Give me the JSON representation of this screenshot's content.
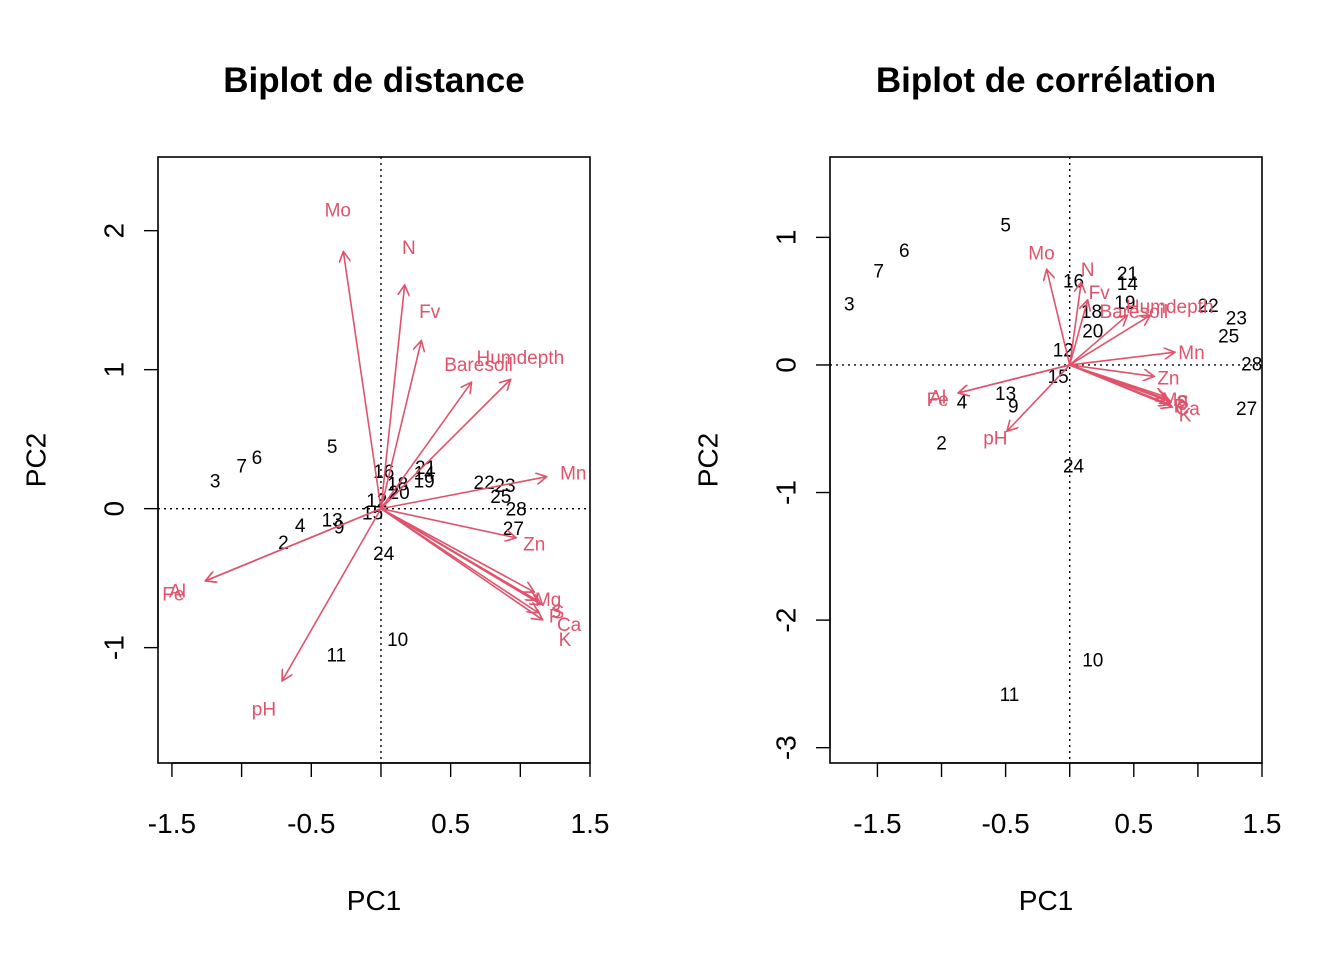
{
  "colors": {
    "arrow": "#DF536B",
    "text": "#000000"
  },
  "chart_data": [
    {
      "type": "scatter",
      "title": "Biplot de distance",
      "xlabel": "PC1",
      "ylabel": "PC2",
      "xlim": [
        -1.6,
        1.5
      ],
      "ylim": [
        -1.83,
        2.53
      ],
      "xticks": [
        -1.5,
        -1.0,
        -0.5,
        0.0,
        0.5,
        1.0,
        1.5
      ],
      "xtick_labels": [
        "-1.5",
        "",
        "-0.5",
        "",
        "0.5",
        "",
        "1.5"
      ],
      "yticks": [
        -1,
        0,
        1,
        2
      ],
      "ytick_labels": [
        "-1",
        "0",
        "1",
        "2"
      ],
      "reference_lines": {
        "x": 0,
        "y": 0,
        "style": "dotted"
      },
      "points": [
        {
          "label": "2",
          "x": -0.7,
          "y": -0.25
        },
        {
          "label": "3",
          "x": -1.19,
          "y": 0.19
        },
        {
          "label": "4",
          "x": -0.58,
          "y": -0.13
        },
        {
          "label": "5",
          "x": -0.35,
          "y": 0.44
        },
        {
          "label": "6",
          "x": -0.89,
          "y": 0.36
        },
        {
          "label": "7",
          "x": -1.0,
          "y": 0.3
        },
        {
          "label": "9",
          "x": -0.3,
          "y": -0.14
        },
        {
          "label": "10",
          "x": 0.12,
          "y": -0.95
        },
        {
          "label": "11",
          "x": -0.32,
          "y": -1.06
        },
        {
          "label": "12",
          "x": -0.03,
          "y": 0.05
        },
        {
          "label": "13",
          "x": -0.35,
          "y": -0.09
        },
        {
          "label": "15",
          "x": -0.06,
          "y": -0.04
        },
        {
          "label": "16",
          "x": 0.02,
          "y": 0.26
        },
        {
          "label": "18",
          "x": 0.12,
          "y": 0.17
        },
        {
          "label": "19",
          "x": 0.31,
          "y": 0.19
        },
        {
          "label": "20",
          "x": 0.13,
          "y": 0.11
        },
        {
          "label": "21",
          "x": 0.32,
          "y": 0.29
        },
        {
          "label": "14",
          "x": 0.31,
          "y": 0.25
        },
        {
          "label": "22",
          "x": 0.74,
          "y": 0.18
        },
        {
          "label": "23",
          "x": 0.89,
          "y": 0.16
        },
        {
          "label": "25",
          "x": 0.86,
          "y": 0.08
        },
        {
          "label": "28",
          "x": 0.97,
          "y": -0.01
        },
        {
          "label": "27",
          "x": 0.95,
          "y": -0.15
        },
        {
          "label": "24",
          "x": 0.02,
          "y": -0.33
        }
      ],
      "arrows": [
        {
          "label": "Mo",
          "x": -0.27,
          "y": 1.85,
          "label_x": -0.31,
          "label_y": 2.14
        },
        {
          "label": "N",
          "x": 0.17,
          "y": 1.61,
          "label_x": 0.2,
          "label_y": 1.87
        },
        {
          "label": "Fv",
          "x": 0.29,
          "y": 1.21,
          "label_x": 0.35,
          "label_y": 1.41
        },
        {
          "label": "Baresoil",
          "x": 0.65,
          "y": 0.91,
          "label_x": 0.7,
          "label_y": 1.03
        },
        {
          "label": "Humdepth",
          "x": 0.93,
          "y": 0.93,
          "label_x": 1.0,
          "label_y": 1.08
        },
        {
          "label": "Mn",
          "x": 1.19,
          "y": 0.23,
          "label_x": 1.38,
          "label_y": 0.25
        },
        {
          "label": "Zn",
          "x": 0.97,
          "y": -0.21,
          "label_x": 1.1,
          "label_y": -0.26
        },
        {
          "label": "Mg",
          "x": 1.12,
          "y": -0.66,
          "label_x": 1.2,
          "label_y": -0.66
        },
        {
          "label": "P",
          "x": 1.15,
          "y": -0.69,
          "label_x": 1.25,
          "label_y": -0.78
        },
        {
          "label": "S",
          "x": 1.1,
          "y": -0.6,
          "label_x": 1.27,
          "label_y": -0.75
        },
        {
          "label": "Ca",
          "x": 1.16,
          "y": -0.8,
          "label_x": 1.35,
          "label_y": -0.84
        },
        {
          "label": "K",
          "x": 1.13,
          "y": -0.75,
          "label_x": 1.32,
          "label_y": -0.95
        },
        {
          "label": "Al",
          "x": -1.26,
          "y": -0.52,
          "label_x": -1.46,
          "label_y": -0.6
        },
        {
          "label": "Fe",
          "x": -1.26,
          "y": -0.52,
          "label_x": -1.49,
          "label_y": -0.62
        },
        {
          "label": "pH",
          "x": -0.71,
          "y": -1.24,
          "label_x": -0.84,
          "label_y": -1.45
        }
      ]
    },
    {
      "type": "scatter",
      "title": "Biplot de corrélation",
      "xlabel": "PC1",
      "ylabel": "PC2",
      "xlim": [
        -1.87,
        1.5
      ],
      "ylim": [
        -3.12,
        1.63
      ],
      "xticks": [
        -1.5,
        -1.0,
        -0.5,
        0.0,
        0.5,
        1.0,
        1.5
      ],
      "xtick_labels": [
        "-1.5",
        "",
        "-0.5",
        "",
        "0.5",
        "",
        "1.5"
      ],
      "yticks": [
        -3,
        -2,
        -1,
        0,
        1
      ],
      "ytick_labels": [
        "-3",
        "-2",
        "-1",
        "0",
        "1"
      ],
      "reference_lines": {
        "x": 0,
        "y": 0,
        "style": "dotted"
      },
      "points": [
        {
          "label": "2",
          "x": -1.0,
          "y": -0.62
        },
        {
          "label": "3",
          "x": -1.72,
          "y": 0.47
        },
        {
          "label": "4",
          "x": -0.84,
          "y": -0.3
        },
        {
          "label": "5",
          "x": -0.5,
          "y": 1.09
        },
        {
          "label": "6",
          "x": -1.29,
          "y": 0.89
        },
        {
          "label": "7",
          "x": -1.49,
          "y": 0.73
        },
        {
          "label": "9",
          "x": -0.44,
          "y": -0.33
        },
        {
          "label": "10",
          "x": 0.18,
          "y": -2.32
        },
        {
          "label": "11",
          "x": -0.47,
          "y": -2.59
        },
        {
          "label": "12",
          "x": -0.05,
          "y": 0.11
        },
        {
          "label": "13",
          "x": -0.5,
          "y": -0.23
        },
        {
          "label": "14",
          "x": 0.45,
          "y": 0.63
        },
        {
          "label": "15",
          "x": -0.09,
          "y": -0.1
        },
        {
          "label": "16",
          "x": 0.03,
          "y": 0.65
        },
        {
          "label": "18",
          "x": 0.17,
          "y": 0.41
        },
        {
          "label": "19",
          "x": 0.43,
          "y": 0.48
        },
        {
          "label": "20",
          "x": 0.18,
          "y": 0.26
        },
        {
          "label": "21",
          "x": 0.45,
          "y": 0.71
        },
        {
          "label": "22",
          "x": 1.08,
          "y": 0.46
        },
        {
          "label": "23",
          "x": 1.3,
          "y": 0.36
        },
        {
          "label": "24",
          "x": 0.03,
          "y": -0.8
        },
        {
          "label": "25",
          "x": 1.24,
          "y": 0.22
        },
        {
          "label": "27",
          "x": 1.38,
          "y": -0.35
        },
        {
          "label": "28",
          "x": 1.42,
          "y": 0.0
        }
      ],
      "arrows": [
        {
          "label": "Mo",
          "x": -0.18,
          "y": 0.75,
          "label_x": -0.22,
          "label_y": 0.87
        },
        {
          "label": "N",
          "x": 0.09,
          "y": 0.65,
          "label_x": 0.14,
          "label_y": 0.74
        },
        {
          "label": "Fv",
          "x": 0.14,
          "y": 0.51,
          "label_x": 0.23,
          "label_y": 0.56
        },
        {
          "label": "Baresoil",
          "x": 0.45,
          "y": 0.39,
          "label_x": 0.5,
          "label_y": 0.41
        },
        {
          "label": "Humdepth",
          "x": 0.63,
          "y": 0.39,
          "label_x": 0.78,
          "label_y": 0.45
        },
        {
          "label": "Mn",
          "x": 0.82,
          "y": 0.1,
          "label_x": 0.95,
          "label_y": 0.09
        },
        {
          "label": "Zn",
          "x": 0.66,
          "y": -0.09,
          "label_x": 0.77,
          "label_y": -0.11
        },
        {
          "label": "Mg",
          "x": 0.76,
          "y": -0.27,
          "label_x": 0.82,
          "label_y": -0.28
        },
        {
          "label": "P",
          "x": 0.79,
          "y": -0.29,
          "label_x": 0.86,
          "label_y": -0.33
        },
        {
          "label": "S",
          "x": 0.75,
          "y": -0.25,
          "label_x": 0.88,
          "label_y": -0.3
        },
        {
          "label": "Ca",
          "x": 0.8,
          "y": -0.33,
          "label_x": 0.92,
          "label_y": -0.35
        },
        {
          "label": "K",
          "x": 0.78,
          "y": -0.31,
          "label_x": 0.9,
          "label_y": -0.4
        },
        {
          "label": "Al",
          "x": -0.87,
          "y": -0.22,
          "label_x": -1.03,
          "label_y": -0.26
        },
        {
          "label": "Fe",
          "x": -0.87,
          "y": -0.22,
          "label_x": -1.03,
          "label_y": -0.28
        },
        {
          "label": "pH",
          "x": -0.49,
          "y": -0.52,
          "label_x": -0.58,
          "label_y": -0.58
        }
      ]
    }
  ]
}
